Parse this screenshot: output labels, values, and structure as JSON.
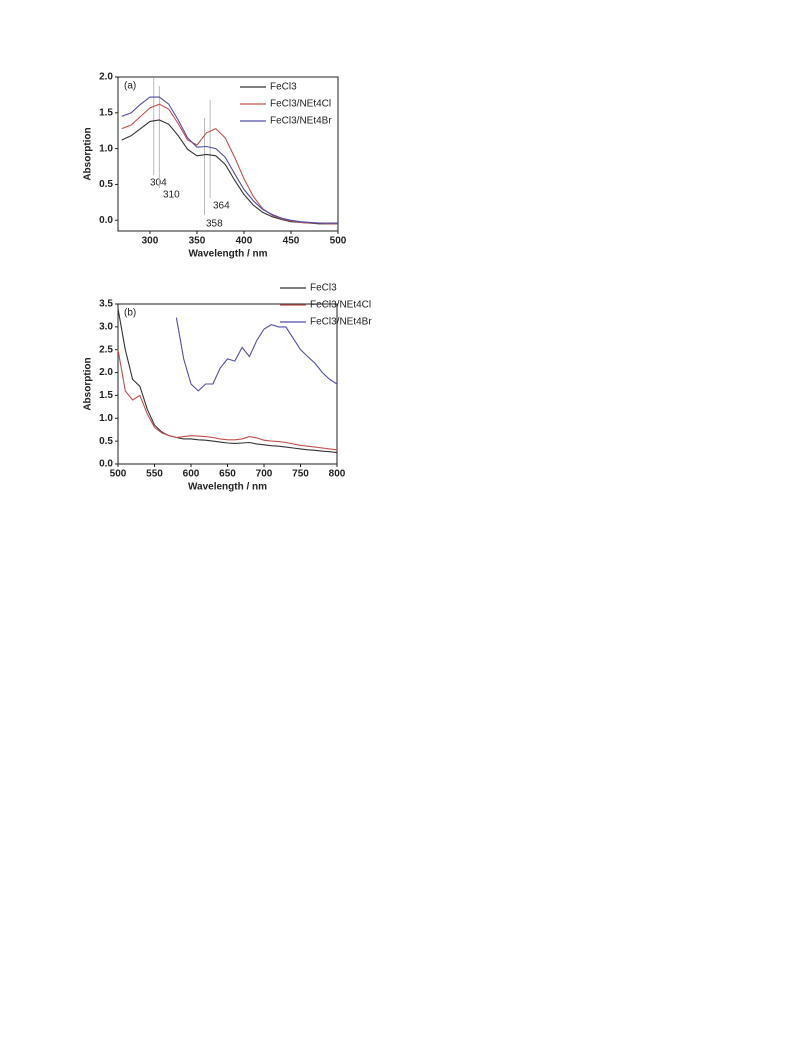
{
  "chart_data": [
    {
      "type": "line",
      "panel_label": "(a)",
      "xlabel": "Wavelength / nm",
      "ylabel": "Absorption",
      "x": [
        270,
        280,
        290,
        300,
        310,
        320,
        330,
        340,
        350,
        360,
        370,
        380,
        390,
        400,
        410,
        420,
        430,
        440,
        450,
        460,
        470,
        480,
        490,
        500
      ],
      "series": [
        {
          "name": "FeCl3",
          "color": "#333333",
          "values": [
            1.12,
            1.18,
            1.28,
            1.38,
            1.4,
            1.34,
            1.18,
            0.99,
            0.9,
            0.92,
            0.9,
            0.78,
            0.56,
            0.36,
            0.21,
            0.11,
            0.05,
            0.01,
            -0.02,
            -0.03,
            -0.04,
            -0.05,
            -0.05,
            -0.05
          ]
        },
        {
          "name": "FeCl3/NEt4Cl",
          "color": "#c0504d",
          "values": [
            1.28,
            1.33,
            1.45,
            1.57,
            1.62,
            1.55,
            1.35,
            1.12,
            1.05,
            1.22,
            1.28,
            1.15,
            0.88,
            0.58,
            0.33,
            0.16,
            0.07,
            0.02,
            -0.01,
            -0.03,
            -0.04,
            -0.04,
            -0.05,
            -0.05
          ]
        },
        {
          "name": "FeCl3/NEt4Br",
          "color": "#4f4fa8",
          "values": [
            1.45,
            1.5,
            1.62,
            1.72,
            1.72,
            1.62,
            1.4,
            1.15,
            1.02,
            1.03,
            1.0,
            0.88,
            0.65,
            0.43,
            0.27,
            0.15,
            0.08,
            0.03,
            0.0,
            -0.02,
            -0.03,
            -0.04,
            -0.04,
            -0.04
          ]
        }
      ],
      "xlim": [
        266,
        500
      ],
      "ylim": [
        -0.15,
        2.0
      ],
      "xticks": [
        300,
        350,
        400,
        450,
        500
      ],
      "yticks": [
        {
          "value": 0,
          "label": "0.0"
        },
        0.5,
        {
          "value": 1,
          "label": "1.0"
        },
        1.5,
        {
          "value": 2,
          "label": "2.0"
        }
      ],
      "annotations": [
        304,
        310,
        364,
        358
      ]
    },
    {
      "type": "line",
      "panel_label": "(b)",
      "xlabel": "Wavelength / nm",
      "ylabel": "Absorption",
      "x": [
        500,
        510,
        520,
        530,
        540,
        550,
        560,
        570,
        580,
        590,
        600,
        610,
        620,
        630,
        640,
        650,
        660,
        670,
        680,
        690,
        700,
        710,
        720,
        730,
        740,
        750,
        760,
        770,
        780,
        790,
        800
      ],
      "series": [
        {
          "name": "FeCl3",
          "color": "#333333",
          "values": [
            3.4,
            2.5,
            1.85,
            1.7,
            1.2,
            0.85,
            0.7,
            0.62,
            0.58,
            0.55,
            0.55,
            0.53,
            0.52,
            0.5,
            0.48,
            0.46,
            0.45,
            0.46,
            0.47,
            0.44,
            0.42,
            0.4,
            0.39,
            0.37,
            0.35,
            0.33,
            0.31,
            0.3,
            0.28,
            0.27,
            0.25
          ]
        },
        {
          "name": "FeCl3/NEt4Cl",
          "color": "#c0504d",
          "values": [
            2.5,
            1.6,
            1.4,
            1.5,
            1.1,
            0.8,
            0.68,
            0.62,
            0.58,
            0.6,
            0.62,
            0.61,
            0.6,
            0.58,
            0.55,
            0.53,
            0.53,
            0.55,
            0.6,
            0.57,
            0.52,
            0.5,
            0.49,
            0.47,
            0.44,
            0.41,
            0.39,
            0.37,
            0.35,
            0.33,
            0.31
          ]
        },
        {
          "name": "FeCl3/NEt4Br",
          "color": "#4f4fa8",
          "values": [
            null,
            null,
            null,
            null,
            null,
            null,
            null,
            null,
            3.2,
            2.3,
            1.75,
            1.6,
            1.75,
            1.75,
            2.1,
            2.3,
            2.25,
            2.55,
            2.35,
            2.7,
            2.95,
            3.05,
            3.0,
            3.0,
            2.75,
            2.5,
            2.35,
            2.2,
            2.0,
            1.85,
            1.75
          ]
        }
      ],
      "xlim": [
        500,
        800
      ],
      "ylim": [
        0,
        3.5
      ],
      "xticks": [
        500,
        550,
        600,
        650,
        700,
        750,
        800
      ],
      "yticks": [
        {
          "value": 0,
          "label": "0.0"
        },
        0.5,
        {
          "value": 1,
          "label": "1.0"
        },
        1.5,
        {
          "value": 2,
          "label": "2.0"
        },
        2.5,
        {
          "value": 3,
          "label": "3.0"
        },
        3.5
      ]
    }
  ]
}
